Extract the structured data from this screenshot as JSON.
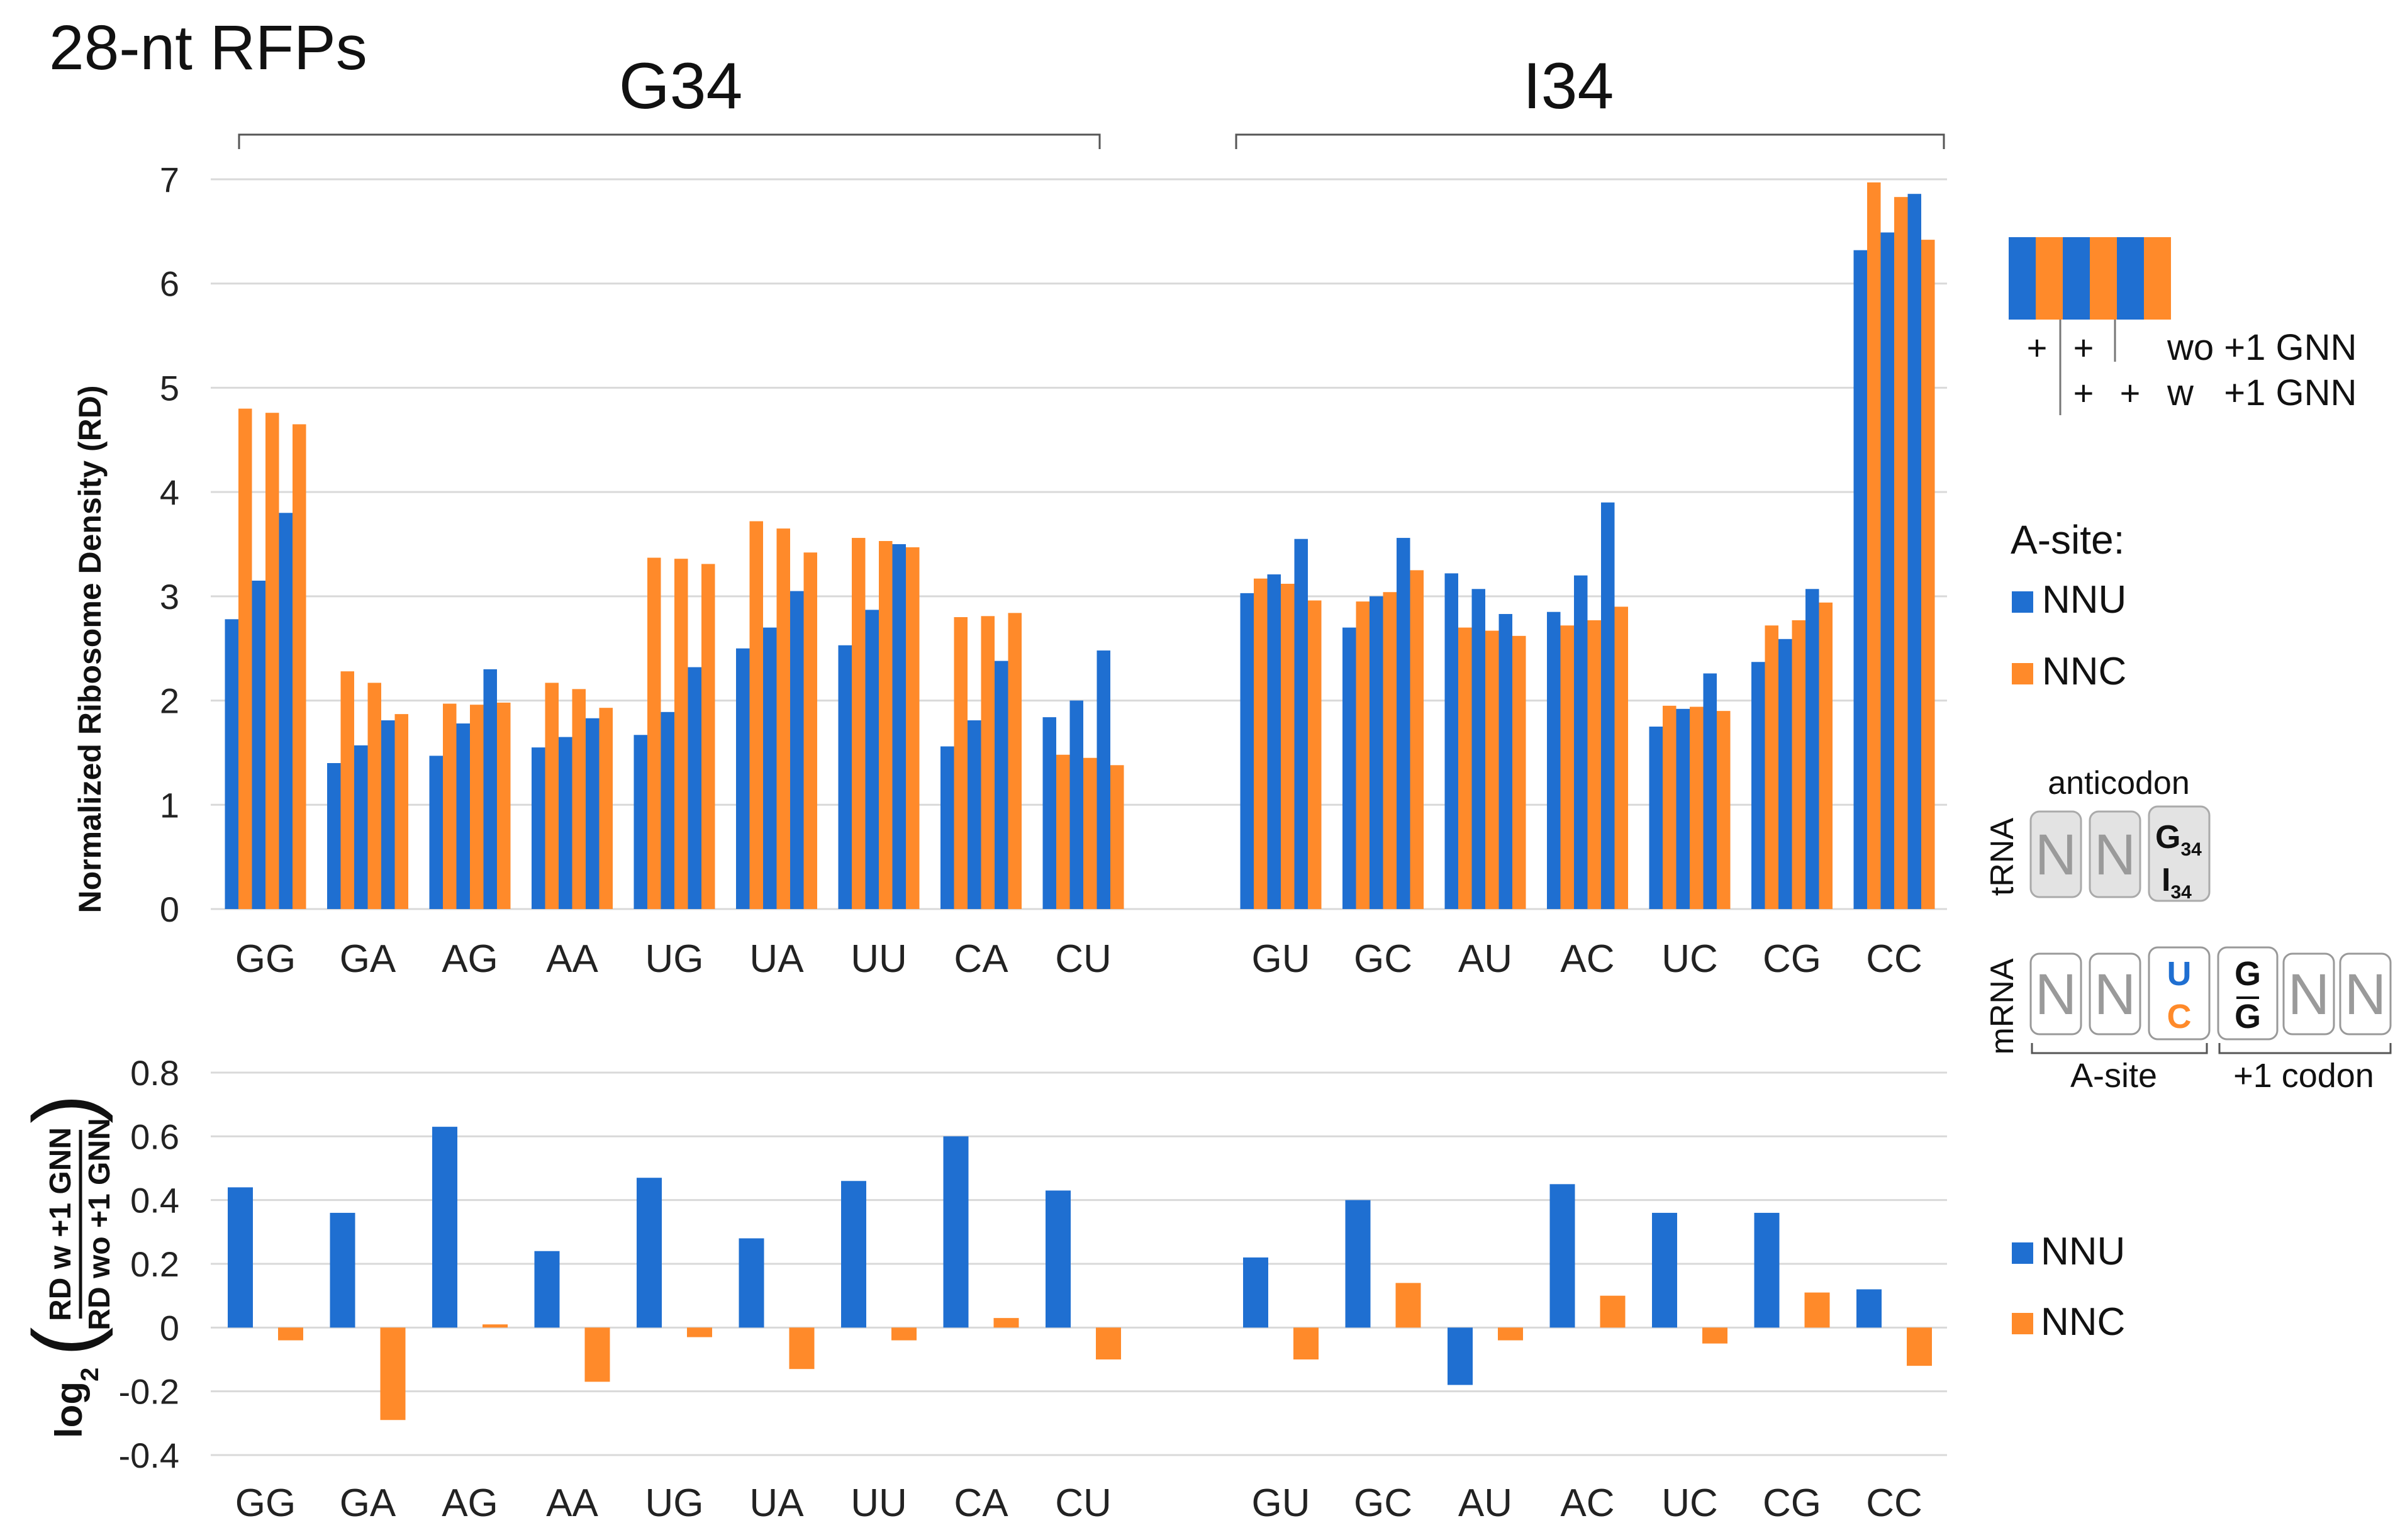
{
  "colors": {
    "nnu": "#1F6FD1",
    "nnc": "#FF8A2A",
    "grid": "#d9d9d9",
    "text": "#222222",
    "box": "#e3e3e3"
  },
  "title": "28-nt RFPs",
  "groups": {
    "g34": "G34",
    "i34": "I34"
  },
  "chart_data": [
    {
      "type": "bar",
      "title": "",
      "ylabel": "Normalized Ribosome Density (RD)",
      "ylim": [
        0,
        7
      ],
      "yticks": [
        "0",
        "1",
        "2",
        "3",
        "4",
        "5",
        "6",
        "7"
      ],
      "categories": [
        "GG",
        "GA",
        "AG",
        "AA",
        "UG",
        "UA",
        "UU",
        "CA",
        "CU",
        "GU",
        "GC",
        "AU",
        "AC",
        "UC",
        "CG",
        "CC"
      ],
      "bar_order": [
        "NNU wo +1 GNN",
        "NNC wo +1 GNN",
        "NNU w +1 GNN",
        "NNC w +1 GNN"
      ],
      "series": [
        {
          "name": "NNU wo +1 GNN",
          "values": [
            2.78,
            1.4,
            1.47,
            1.55,
            1.67,
            2.5,
            2.53,
            1.56,
            1.84,
            3.03,
            2.7,
            3.22,
            2.85,
            1.75,
            2.37,
            6.32
          ]
        },
        {
          "name": "NNC wo +1 GNN",
          "values": [
            4.8,
            2.28,
            1.97,
            2.17,
            3.37,
            3.72,
            3.56,
            2.8,
            1.48,
            3.17,
            2.95,
            2.7,
            2.72,
            1.95,
            2.72,
            6.97
          ]
        },
        {
          "name": "NNU w +1 GNN",
          "values": [
            3.15,
            1.57,
            1.78,
            1.65,
            1.89,
            2.7,
            2.87,
            1.81,
            2.0,
            3.21,
            3.0,
            3.07,
            3.2,
            1.92,
            2.59,
            6.49
          ]
        },
        {
          "name": "NNC w +1 GNN",
          "values": [
            4.76,
            2.17,
            1.96,
            2.11,
            3.36,
            3.65,
            3.53,
            2.81,
            1.45,
            3.12,
            3.04,
            2.67,
            2.77,
            1.94,
            2.77,
            6.83
          ]
        },
        {
          "name": "NNU extra",
          "values": [
            3.8,
            1.81,
            2.3,
            1.83,
            2.32,
            3.05,
            3.5,
            2.38,
            2.48,
            3.55,
            3.56,
            2.83,
            3.9,
            2.26,
            3.07,
            6.86
          ]
        },
        {
          "name": "NNC extra",
          "values": [
            4.65,
            1.87,
            1.98,
            1.93,
            3.31,
            3.42,
            3.47,
            2.84,
            1.38,
            2.96,
            3.25,
            2.62,
            2.9,
            1.9,
            2.94,
            6.42
          ]
        }
      ]
    },
    {
      "type": "bar",
      "ylabel_num": "RD w   +1 GNN",
      "ylabel_den": "RD wo +1 GNN",
      "ylabel_log": "log",
      "ylabel_sub": "2",
      "ylim": [
        -0.4,
        0.8
      ],
      "yticks": [
        "-0.4",
        "-0.2",
        "0",
        "0.2",
        "0.4",
        "0.6",
        "0.8"
      ],
      "categories": [
        "GG",
        "GA",
        "AG",
        "AA",
        "UG",
        "UA",
        "UU",
        "CA",
        "CU",
        "GU",
        "GC",
        "AU",
        "AC",
        "UC",
        "CG",
        "CC"
      ],
      "series": [
        {
          "name": "NNU",
          "values": [
            0.44,
            0.36,
            0.63,
            0.24,
            0.47,
            0.28,
            0.46,
            0.6,
            0.43,
            0.22,
            0.4,
            -0.18,
            0.45,
            0.36,
            0.36,
            0.12
          ]
        },
        {
          "name": "NNC",
          "values": [
            -0.04,
            -0.29,
            0.01,
            -0.17,
            -0.03,
            -0.13,
            -0.04,
            0.03,
            -0.1,
            -0.1,
            0.14,
            -0.04,
            0.1,
            -0.05,
            0.11,
            -0.12
          ]
        }
      ]
    }
  ],
  "legend_top": {
    "plus": "+",
    "row1": "wo +1 GNN",
    "row2": "w   +1 GNN"
  },
  "legend_asite": {
    "title": "A-site:",
    "nnu": "NNU",
    "nnc": "NNC"
  },
  "legend_bottom": {
    "nnu": "NNU",
    "nnc": "NNC"
  },
  "diagram": {
    "anticodon": "anticodon",
    "trna": "tRNA",
    "mrna": "mRNA",
    "n": "N",
    "g": "G",
    "i": "I",
    "sub34": "34",
    "u": "U",
    "c": "C",
    "asite": "A-site",
    "plus1": "+1 codon"
  }
}
